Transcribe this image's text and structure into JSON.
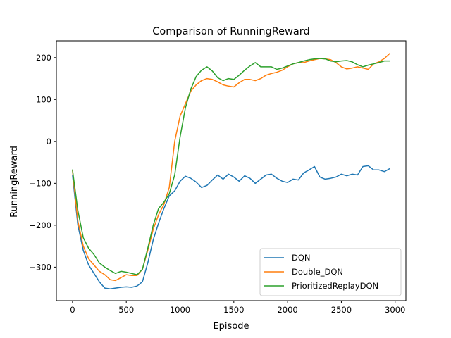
{
  "chart_data": {
    "type": "line",
    "title": "Comparison of RunningReward",
    "xlabel": "Episode",
    "ylabel": "RunningReward",
    "xlim": [
      -150,
      3100
    ],
    "ylim": [
      -380,
      240
    ],
    "xticks": [
      0,
      500,
      1000,
      1500,
      2000,
      2500,
      3000
    ],
    "yticks": [
      -300,
      -200,
      -100,
      0,
      100,
      200
    ],
    "xtick_labels": [
      "0",
      "500",
      "1000",
      "1500",
      "2000",
      "2500",
      "3000"
    ],
    "ytick_labels": [
      "−300",
      "−200",
      "−100",
      "0",
      "100",
      "200"
    ],
    "grid": false,
    "legend_position": "lower-right",
    "series": [
      {
        "name": "DQN",
        "color": "#1f77b4",
        "x": [
          0,
          50,
          100,
          150,
          200,
          250,
          300,
          350,
          400,
          450,
          500,
          550,
          600,
          650,
          700,
          750,
          800,
          850,
          900,
          950,
          1000,
          1050,
          1100,
          1150,
          1200,
          1250,
          1300,
          1350,
          1400,
          1450,
          1500,
          1550,
          1600,
          1650,
          1700,
          1750,
          1800,
          1850,
          1900,
          1950,
          2000,
          2050,
          2100,
          2150,
          2200,
          2250,
          2300,
          2350,
          2400,
          2450,
          2500,
          2550,
          2600,
          2650,
          2700,
          2750,
          2800,
          2850,
          2900,
          2950
        ],
        "y": [
          -80,
          -200,
          -260,
          -295,
          -315,
          -335,
          -350,
          -352,
          -350,
          -348,
          -347,
          -348,
          -345,
          -335,
          -290,
          -235,
          -195,
          -160,
          -130,
          -118,
          -95,
          -83,
          -88,
          -97,
          -110,
          -105,
          -92,
          -80,
          -90,
          -78,
          -85,
          -95,
          -82,
          -88,
          -100,
          -90,
          -80,
          -78,
          -88,
          -95,
          -98,
          -90,
          -92,
          -75,
          -68,
          -60,
          -85,
          -90,
          -88,
          -85,
          -78,
          -82,
          -78,
          -80,
          -60,
          -58,
          -68,
          -68,
          -72,
          -65
        ]
      },
      {
        "name": "Double_DQN",
        "color": "#ff7f0e",
        "x": [
          0,
          50,
          100,
          150,
          200,
          250,
          300,
          350,
          400,
          450,
          500,
          550,
          600,
          650,
          700,
          750,
          800,
          850,
          900,
          950,
          1000,
          1050,
          1100,
          1150,
          1200,
          1250,
          1300,
          1350,
          1400,
          1450,
          1500,
          1550,
          1600,
          1650,
          1700,
          1750,
          1800,
          1850,
          1900,
          1950,
          2000,
          2050,
          2100,
          2150,
          2200,
          2250,
          2300,
          2350,
          2400,
          2450,
          2500,
          2550,
          2600,
          2650,
          2700,
          2750,
          2800,
          2850,
          2900,
          2950
        ],
        "y": [
          -70,
          -190,
          -250,
          -280,
          -295,
          -310,
          -318,
          -330,
          -332,
          -325,
          -318,
          -320,
          -320,
          -305,
          -260,
          -210,
          -175,
          -150,
          -110,
          0,
          60,
          90,
          120,
          135,
          145,
          150,
          148,
          142,
          135,
          132,
          130,
          140,
          148,
          148,
          145,
          150,
          158,
          162,
          165,
          170,
          178,
          185,
          188,
          188,
          192,
          195,
          198,
          197,
          195,
          188,
          178,
          173,
          175,
          178,
          175,
          172,
          185,
          190,
          198,
          210
        ]
      },
      {
        "name": "PrioritizedReplayDQN",
        "color": "#2ca02c",
        "x": [
          0,
          50,
          100,
          150,
          200,
          250,
          300,
          350,
          400,
          450,
          500,
          550,
          600,
          650,
          700,
          750,
          800,
          850,
          900,
          950,
          1000,
          1050,
          1100,
          1150,
          1200,
          1250,
          1300,
          1350,
          1400,
          1450,
          1500,
          1550,
          1600,
          1650,
          1700,
          1750,
          1800,
          1850,
          1900,
          1950,
          2000,
          2050,
          2100,
          2150,
          2200,
          2250,
          2300,
          2350,
          2400,
          2450,
          2500,
          2550,
          2600,
          2650,
          2700,
          2750,
          2800,
          2850,
          2900,
          2950
        ],
        "y": [
          -68,
          -165,
          -230,
          -255,
          -270,
          -290,
          -300,
          -308,
          -315,
          -310,
          -312,
          -315,
          -318,
          -305,
          -255,
          -200,
          -160,
          -145,
          -125,
          -80,
          10,
          80,
          125,
          155,
          170,
          178,
          168,
          152,
          145,
          150,
          148,
          158,
          170,
          180,
          188,
          178,
          178,
          178,
          172,
          175,
          180,
          185,
          188,
          192,
          195,
          197,
          198,
          197,
          192,
          190,
          192,
          193,
          190,
          183,
          178,
          182,
          185,
          188,
          192,
          192
        ]
      }
    ]
  }
}
